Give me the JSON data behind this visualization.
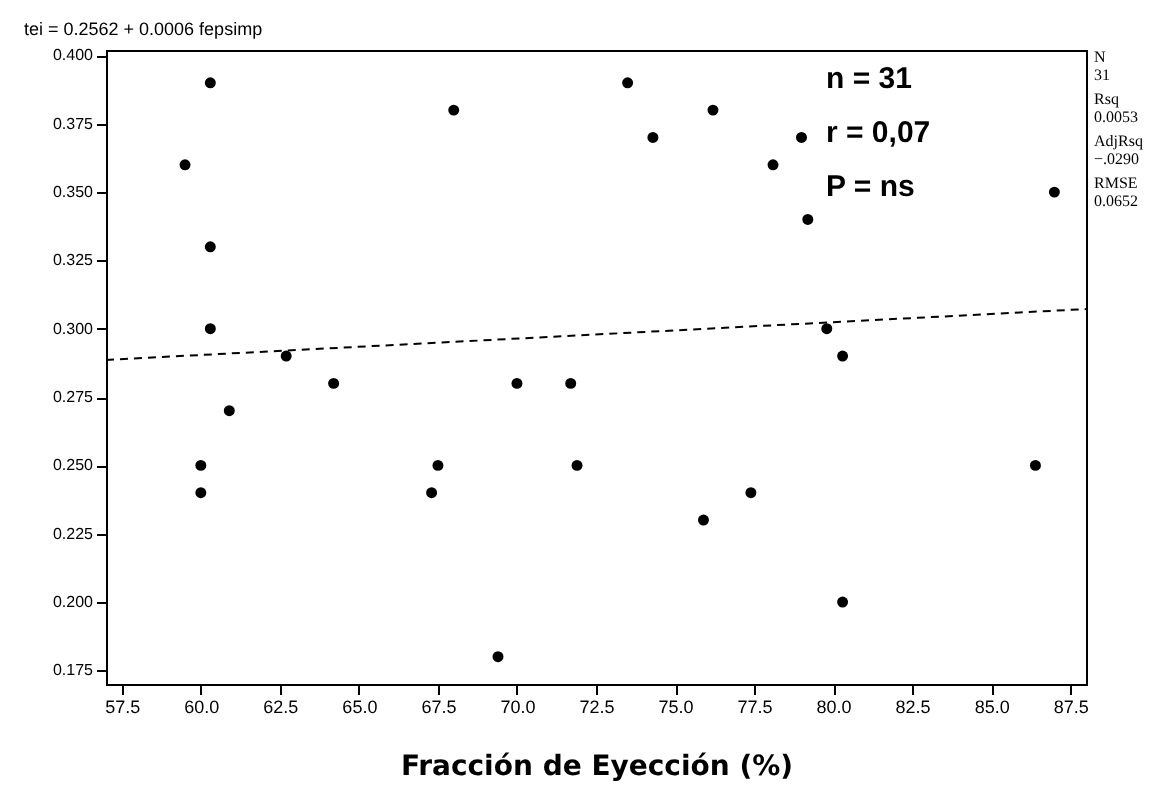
{
  "chart_data": {
    "type": "scatter",
    "title": "tei = 0.2562 + 0.0006 fepsimp",
    "xlabel": "Fracción de Eyección (%)",
    "xlim": [
      57,
      88
    ],
    "ylim": [
      0.17,
      0.402
    ],
    "xticks": [
      {
        "value": 57.5,
        "label": "57.5"
      },
      {
        "value": 60,
        "label": "60.0"
      },
      {
        "value": 62.5,
        "label": "62.5"
      },
      {
        "value": 65,
        "label": "65.0"
      },
      {
        "value": 67.5,
        "label": "67.5"
      },
      {
        "value": 70,
        "label": "70.0"
      },
      {
        "value": 72.5,
        "label": "72.5"
      },
      {
        "value": 75,
        "label": "75.0"
      },
      {
        "value": 77.5,
        "label": "77.5"
      },
      {
        "value": 80,
        "label": "80.0"
      },
      {
        "value": 82.5,
        "label": "82.5"
      },
      {
        "value": 85,
        "label": "85.0"
      },
      {
        "value": 87.5,
        "label": "87.5"
      }
    ],
    "yticks": [
      {
        "value": 0.175,
        "label": "0.175"
      },
      {
        "value": 0.2,
        "label": "0.200"
      },
      {
        "value": 0.225,
        "label": "0.225"
      },
      {
        "value": 0.25,
        "label": "0.250"
      },
      {
        "value": 0.275,
        "label": "0.275"
      },
      {
        "value": 0.3,
        "label": "0.300"
      },
      {
        "value": 0.325,
        "label": "0.325"
      },
      {
        "value": 0.35,
        "label": "0.350"
      },
      {
        "value": 0.375,
        "label": "0.375"
      },
      {
        "value": 0.4,
        "label": "0.400"
      }
    ],
    "marker": "circle",
    "series": [
      {
        "color": "#000000",
        "x": [
          59.5,
          60.3,
          60.3,
          60.3,
          60.0,
          60.0,
          60.9,
          62.7,
          64.2,
          68.0,
          67.3,
          67.5,
          69.4,
          70.0,
          71.7,
          71.9,
          73.5,
          74.3,
          76.2,
          75.9,
          77.4,
          78.1,
          79.0,
          79.2,
          79.8,
          80.3,
          80.3,
          86.4,
          87.0
        ],
        "values": [
          0.36,
          0.39,
          0.33,
          0.3,
          0.25,
          0.24,
          0.27,
          0.29,
          0.28,
          0.38,
          0.24,
          0.25,
          0.18,
          0.28,
          0.28,
          0.25,
          0.39,
          0.37,
          0.38,
          0.23,
          0.24,
          0.36,
          0.37,
          0.34,
          0.3,
          0.29,
          0.2,
          0.25,
          0.35
        ]
      },
      {
        "type": "line",
        "color": "#000000",
        "line_style": "dashed",
        "marker": "none",
        "x": [
          57,
          88
        ],
        "values": [
          0.2886,
          0.3072
        ]
      }
    ],
    "annotations": [
      "n = 31",
      "r =  0,07",
      "P = ns",
      "N",
      "31",
      "Rsq",
      "0.0053",
      "AdjRsq",
      "−.0290",
      "RMSE",
      "0.0652"
    ]
  }
}
